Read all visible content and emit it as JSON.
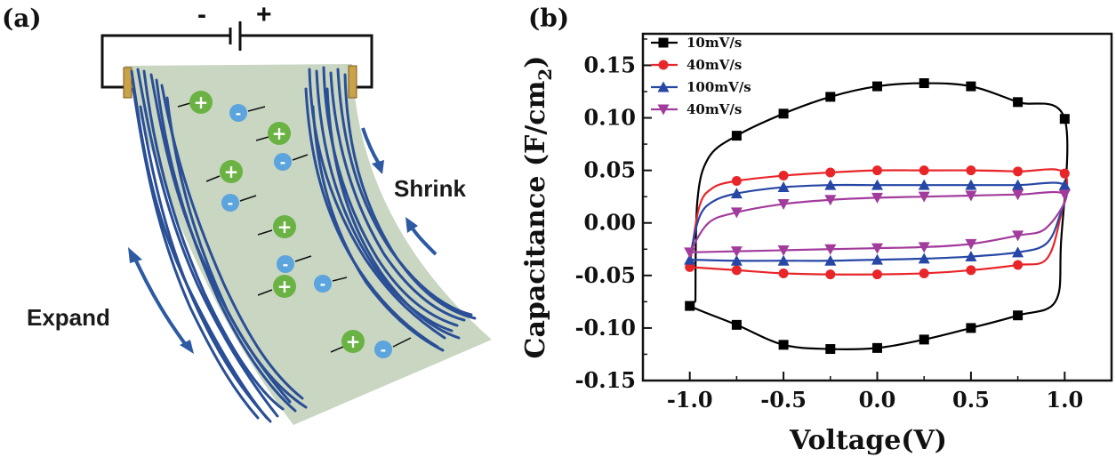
{
  "panel_a": {
    "label": "(a)",
    "battery_minus": "-",
    "battery_plus": "+",
    "expand_label": "Expand",
    "shrink_label": "Shrink",
    "ion_plus_symbol": "+",
    "ion_minus_symbol": "-",
    "colors": {
      "film": "#c9d6c2",
      "fiber": "#2a4f96",
      "cation": "#6ab243",
      "anion": "#5ba4dd",
      "arrow": "#2d5aa3",
      "electrode": "#c9a24a"
    }
  },
  "panel_b": {
    "label": "(b)"
  },
  "chart_data": {
    "type": "line",
    "title": "",
    "xlabel": "Voltage(V)",
    "ylabel": "Capacitance (F/cm",
    "ylabel_subscript": "2",
    "ylabel_close": ")",
    "xlim": [
      -1.25,
      1.25
    ],
    "ylim": [
      -0.15,
      0.18
    ],
    "xticks": [
      -1.0,
      -0.5,
      0.0,
      0.5,
      1.0
    ],
    "xtick_labels": [
      "-1.0",
      "-0.5",
      "0.0",
      "0.5",
      "1.0"
    ],
    "yticks": [
      -0.15,
      -0.1,
      -0.05,
      0.0,
      0.05,
      0.1,
      0.15
    ],
    "ytick_labels": [
      "-0.15",
      "-0.10",
      "-0.05",
      "0.00",
      "0.05",
      "0.10",
      "0.15"
    ],
    "legend_position": "top-left",
    "series": [
      {
        "name": "10mV/s",
        "color": "#000000",
        "marker": "square",
        "upper": [
          [
            -0.97,
            -0.075
          ],
          [
            -0.96,
            0.02
          ],
          [
            -0.9,
            0.062
          ],
          [
            -0.75,
            0.083
          ],
          [
            -0.5,
            0.104
          ],
          [
            -0.25,
            0.12
          ],
          [
            0.0,
            0.13
          ],
          [
            0.25,
            0.133
          ],
          [
            0.5,
            0.13
          ],
          [
            0.75,
            0.115
          ],
          [
            1.0,
            0.099
          ]
        ],
        "lower": [
          [
            1.0,
            0.099
          ],
          [
            0.98,
            -0.02
          ],
          [
            0.95,
            -0.075
          ],
          [
            0.75,
            -0.088
          ],
          [
            0.5,
            -0.1
          ],
          [
            0.25,
            -0.111
          ],
          [
            0.0,
            -0.119
          ],
          [
            -0.25,
            -0.12
          ],
          [
            -0.5,
            -0.116
          ],
          [
            -0.75,
            -0.097
          ],
          [
            -1.0,
            -0.079
          ],
          [
            -0.97,
            -0.075
          ]
        ],
        "markers": [
          [
            -0.75,
            0.083
          ],
          [
            -0.5,
            0.104
          ],
          [
            -0.25,
            0.12
          ],
          [
            0.0,
            0.13
          ],
          [
            0.25,
            0.133
          ],
          [
            0.5,
            0.13
          ],
          [
            0.75,
            0.115
          ],
          [
            1.0,
            0.099
          ],
          [
            0.75,
            -0.088
          ],
          [
            0.5,
            -0.1
          ],
          [
            0.25,
            -0.111
          ],
          [
            0.0,
            -0.119
          ],
          [
            -0.25,
            -0.12
          ],
          [
            -0.5,
            -0.116
          ],
          [
            -0.75,
            -0.097
          ],
          [
            -1.0,
            -0.079
          ]
        ]
      },
      {
        "name": "40mV/s",
        "color": "#e8262a",
        "marker": "circle",
        "upper": [
          [
            -1.0,
            -0.04
          ],
          [
            -0.95,
            0.015
          ],
          [
            -0.88,
            0.033
          ],
          [
            -0.75,
            0.04
          ],
          [
            -0.5,
            0.045
          ],
          [
            -0.25,
            0.048
          ],
          [
            0.0,
            0.05
          ],
          [
            0.25,
            0.05
          ],
          [
            0.5,
            0.05
          ],
          [
            0.75,
            0.049
          ],
          [
            1.0,
            0.047
          ]
        ],
        "lower": [
          [
            1.0,
            0.047
          ],
          [
            0.97,
            0.0
          ],
          [
            0.9,
            -0.035
          ],
          [
            0.75,
            -0.04
          ],
          [
            0.5,
            -0.045
          ],
          [
            0.25,
            -0.048
          ],
          [
            0.0,
            -0.049
          ],
          [
            -0.25,
            -0.049
          ],
          [
            -0.5,
            -0.048
          ],
          [
            -0.75,
            -0.045
          ],
          [
            -1.0,
            -0.042
          ]
        ],
        "markers": [
          [
            -0.75,
            0.04
          ],
          [
            -0.5,
            0.045
          ],
          [
            -0.25,
            0.048
          ],
          [
            0.0,
            0.05
          ],
          [
            0.25,
            0.05
          ],
          [
            0.5,
            0.05
          ],
          [
            0.75,
            0.049
          ],
          [
            1.0,
            0.047
          ],
          [
            0.75,
            -0.04
          ],
          [
            0.5,
            -0.045
          ],
          [
            0.25,
            -0.048
          ],
          [
            0.0,
            -0.049
          ],
          [
            -0.25,
            -0.049
          ],
          [
            -0.5,
            -0.048
          ],
          [
            -0.75,
            -0.045
          ],
          [
            -1.0,
            -0.042
          ]
        ]
      },
      {
        "name": "100mV/s",
        "color": "#2647a5",
        "marker": "triangle-up",
        "upper": [
          [
            -1.0,
            -0.033
          ],
          [
            -0.95,
            0.005
          ],
          [
            -0.88,
            0.02
          ],
          [
            -0.75,
            0.028
          ],
          [
            -0.5,
            0.034
          ],
          [
            -0.25,
            0.036
          ],
          [
            0.0,
            0.036
          ],
          [
            0.25,
            0.036
          ],
          [
            0.5,
            0.036
          ],
          [
            0.75,
            0.036
          ],
          [
            1.0,
            0.036
          ]
        ],
        "lower": [
          [
            1.0,
            0.036
          ],
          [
            0.97,
            0.005
          ],
          [
            0.9,
            -0.02
          ],
          [
            0.75,
            -0.028
          ],
          [
            0.5,
            -0.032
          ],
          [
            0.25,
            -0.034
          ],
          [
            0.0,
            -0.035
          ],
          [
            -0.25,
            -0.036
          ],
          [
            -0.5,
            -0.036
          ],
          [
            -0.75,
            -0.036
          ],
          [
            -1.0,
            -0.035
          ]
        ],
        "markers": [
          [
            -0.75,
            0.028
          ],
          [
            -0.5,
            0.034
          ],
          [
            -0.25,
            0.036
          ],
          [
            0.0,
            0.036
          ],
          [
            0.25,
            0.036
          ],
          [
            0.5,
            0.036
          ],
          [
            0.75,
            0.036
          ],
          [
            1.0,
            0.036
          ],
          [
            0.75,
            -0.028
          ],
          [
            0.5,
            -0.032
          ],
          [
            0.25,
            -0.034
          ],
          [
            0.0,
            -0.035
          ],
          [
            -0.25,
            -0.036
          ],
          [
            -0.5,
            -0.036
          ],
          [
            -0.75,
            -0.036
          ],
          [
            -1.0,
            -0.035
          ]
        ]
      },
      {
        "name": "40mV/s",
        "color": "#a23c9c",
        "marker": "triangle-down",
        "upper": [
          [
            -1.0,
            -0.028
          ],
          [
            -0.9,
            0.0
          ],
          [
            -0.75,
            0.01
          ],
          [
            -0.5,
            0.018
          ],
          [
            -0.25,
            0.022
          ],
          [
            0.0,
            0.024
          ],
          [
            0.25,
            0.025
          ],
          [
            0.5,
            0.026
          ],
          [
            0.75,
            0.027
          ],
          [
            1.0,
            0.027
          ]
        ],
        "lower": [
          [
            1.0,
            0.027
          ],
          [
            0.9,
            -0.005
          ],
          [
            0.75,
            -0.012
          ],
          [
            0.5,
            -0.02
          ],
          [
            0.25,
            -0.023
          ],
          [
            0.0,
            -0.024
          ],
          [
            -0.25,
            -0.025
          ],
          [
            -0.5,
            -0.026
          ],
          [
            -0.75,
            -0.027
          ],
          [
            -1.0,
            -0.028
          ]
        ],
        "markers": [
          [
            -0.75,
            0.01
          ],
          [
            -0.5,
            0.018
          ],
          [
            -0.25,
            0.022
          ],
          [
            0.0,
            0.024
          ],
          [
            0.25,
            0.025
          ],
          [
            0.5,
            0.026
          ],
          [
            0.75,
            0.027
          ],
          [
            1.0,
            0.027
          ],
          [
            0.75,
            -0.012
          ],
          [
            0.5,
            -0.02
          ],
          [
            0.25,
            -0.023
          ],
          [
            0.0,
            -0.024
          ],
          [
            -0.25,
            -0.025
          ],
          [
            -0.5,
            -0.026
          ],
          [
            -0.75,
            -0.027
          ],
          [
            -1.0,
            -0.028
          ]
        ]
      }
    ]
  }
}
